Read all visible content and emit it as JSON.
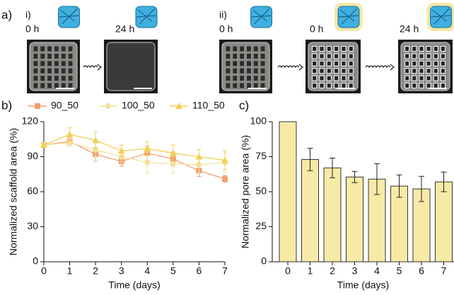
{
  "figure_a": {
    "label": "a)",
    "groups": [
      {
        "label": "i)",
        "times": [
          "0 h",
          "24 h"
        ]
      },
      {
        "label": "ii)",
        "times": [
          "0 h",
          "0 h",
          "24 h"
        ]
      }
    ]
  },
  "chart_data": [
    {
      "type": "line",
      "label": "b)",
      "x_label": "Time (days)",
      "y_label": "Normalized scaffold area  (%)",
      "x": [
        0,
        1,
        2,
        3,
        4,
        5,
        6,
        7
      ],
      "xlim": [
        0,
        7
      ],
      "xticks": [
        0,
        1,
        2,
        3,
        4,
        5,
        6,
        7
      ],
      "ylim": [
        0,
        120
      ],
      "yticks": [
        0,
        30,
        60,
        90,
        120
      ],
      "legend": "top",
      "series": [
        {
          "name": "90_50",
          "color": "#f0a070",
          "marker": "square",
          "values": [
            100,
            103,
            92,
            86,
            93,
            88,
            78,
            71
          ],
          "errors": [
            0,
            3,
            6,
            4,
            6,
            6,
            5,
            3
          ]
        },
        {
          "name": "100_50",
          "color": "#f5e29e",
          "marker": "circle",
          "values": [
            100,
            102,
            96,
            90,
            85,
            84,
            83,
            85
          ],
          "errors": [
            0,
            3,
            6,
            5,
            9,
            8,
            7,
            8
          ]
        },
        {
          "name": "110_50",
          "color": "#f3cf55",
          "marker": "triangle",
          "values": [
            100,
            109,
            104,
            95,
            97,
            93,
            90,
            87
          ],
          "errors": [
            0,
            6,
            7,
            5,
            6,
            7,
            6,
            8
          ]
        }
      ]
    },
    {
      "type": "bar",
      "label": "c)",
      "x_label": "Time (days)",
      "y_label": "Normalized pore area (%)",
      "categories": [
        "0",
        "1",
        "2",
        "3",
        "4",
        "5",
        "6",
        "7"
      ],
      "values": [
        100,
        73,
        67,
        60.5,
        59,
        54,
        52,
        57
      ],
      "errors": [
        0,
        8,
        7,
        4,
        11,
        8,
        9,
        7
      ],
      "color": "#f7eaa6",
      "ylim": [
        0,
        100
      ],
      "yticks": [
        0,
        25,
        50,
        75,
        100
      ]
    }
  ]
}
